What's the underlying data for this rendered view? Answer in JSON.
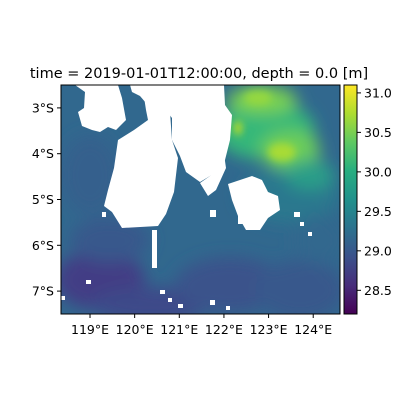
{
  "figure": {
    "title": "time = 2019-01-01T12:00:00, depth = 0.0 [m]"
  },
  "map": {
    "x_ticks": [
      {
        "value": 119,
        "label": "119°E"
      },
      {
        "value": 120,
        "label": "120°E"
      },
      {
        "value": 121,
        "label": "121°E"
      },
      {
        "value": 122,
        "label": "122°E"
      },
      {
        "value": 123,
        "label": "123°E"
      },
      {
        "value": 124,
        "label": "124°E"
      }
    ],
    "y_ticks": [
      {
        "value": -3,
        "label": "3°S"
      },
      {
        "value": -4,
        "label": "4°S"
      },
      {
        "value": -5,
        "label": "5°S"
      },
      {
        "value": -6,
        "label": "6°S"
      },
      {
        "value": -7,
        "label": "7°S"
      }
    ],
    "lon_range": [
      118.35,
      124.6
    ],
    "lat_range": [
      -7.5,
      -2.5
    ],
    "land_color": "#ffffff"
  },
  "colorbar": {
    "range": [
      28.2,
      31.1
    ],
    "ticks": [
      {
        "value": 28.5,
        "label": "28.5"
      },
      {
        "value": 29.0,
        "label": "29.0"
      },
      {
        "value": 29.5,
        "label": "29.5"
      },
      {
        "value": 30.0,
        "label": "30.0"
      },
      {
        "value": 30.5,
        "label": "30.5"
      },
      {
        "value": 31.0,
        "label": "31.0"
      }
    ],
    "colormap": "viridis"
  }
}
